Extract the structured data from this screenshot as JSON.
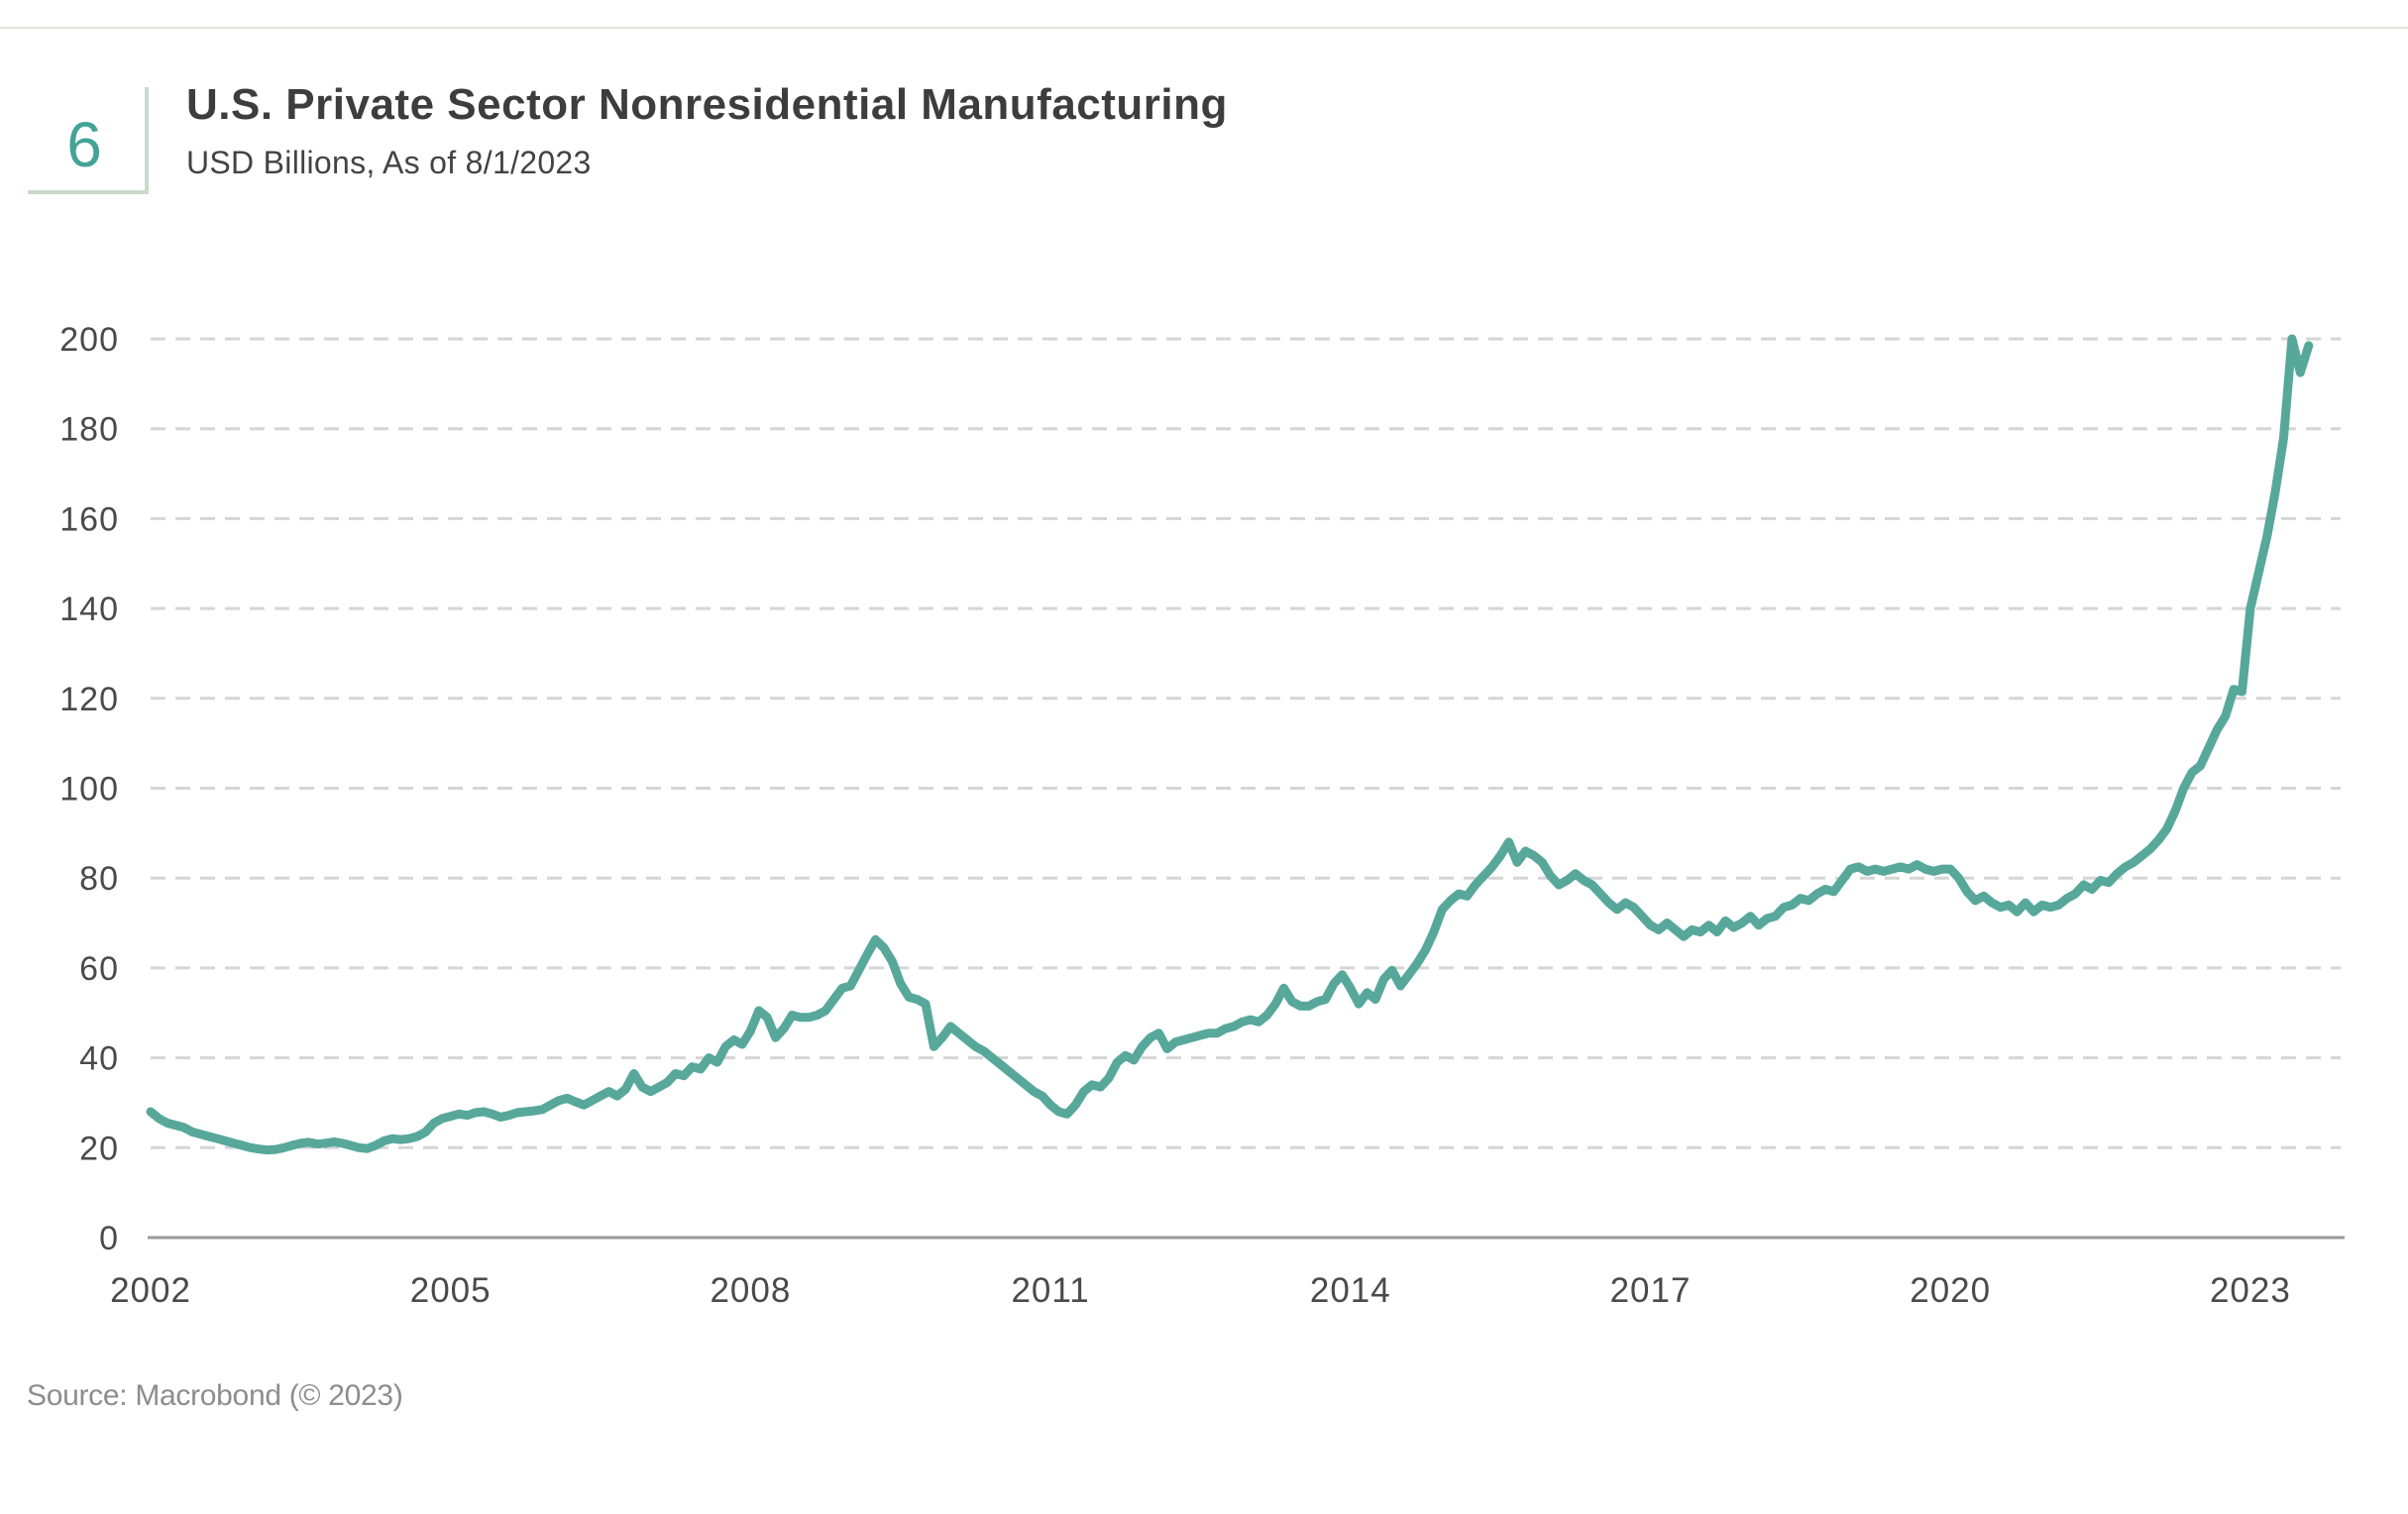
{
  "header": {
    "badge": "6",
    "title": "U.S. Private Sector Nonresidential Manufacturing",
    "subtitle": "USD Billions, As of 8/1/2023"
  },
  "footer": {
    "source": "Source: Macrobond (© 2023)"
  },
  "colors": {
    "line": "#57a89b",
    "badge_accent": "#43a396",
    "badge_border": "#ccd8cc",
    "gridline": "#d5d5d5",
    "axis": "#999999",
    "tick_label": "#4a4a4a"
  },
  "chart_data": {
    "type": "line",
    "title": "U.S. Private Sector Nonresidential Manufacturing",
    "xlabel": "",
    "ylabel": "USD Billions",
    "frequency": "monthly",
    "x_start": "2002-01",
    "x_end": "2023-08",
    "ylim": [
      0,
      200
    ],
    "grid": "dashed-horizontal",
    "legend": "none",
    "y_ticks": [
      0,
      20,
      40,
      60,
      80,
      100,
      120,
      140,
      160,
      180,
      200
    ],
    "x_ticks": [
      2002,
      2005,
      2008,
      2011,
      2014,
      2017,
      2020,
      2023
    ],
    "series": [
      {
        "name": "U.S. Private Sector Nonresidential Manufacturing",
        "start_year": 2002,
        "values": [
          28,
          26.5,
          25.5,
          25,
          24.5,
          23.5,
          23,
          22.5,
          22,
          21.5,
          21,
          20.5,
          20,
          19.7,
          19.5,
          19.6,
          20,
          20.5,
          21,
          21.2,
          20.8,
          21,
          21.3,
          21,
          20.5,
          20,
          19.8,
          20.5,
          21.5,
          22,
          21.8,
          22,
          22.5,
          23.5,
          25.5,
          26.5,
          27,
          27.5,
          27.2,
          27.8,
          28,
          27.5,
          26.8,
          27.2,
          27.8,
          28,
          28.2,
          28.5,
          29.5,
          30.5,
          31,
          30.2,
          29.5,
          30.5,
          31.5,
          32.5,
          31.5,
          33,
          36.5,
          33.5,
          32.5,
          33.5,
          34.5,
          36.5,
          36,
          38,
          37.5,
          40,
          39,
          42.5,
          44,
          43,
          46,
          50.5,
          49,
          44.5,
          46.5,
          49.5,
          49,
          49,
          49.5,
          50.5,
          53,
          55.5,
          56,
          59.5,
          63,
          66.3,
          64.5,
          61.5,
          56.5,
          53.5,
          53,
          52,
          42.5,
          44.5,
          47,
          45.5,
          44,
          42.5,
          41.5,
          40,
          38.5,
          37,
          35.5,
          34,
          32.5,
          31.5,
          29.5,
          28,
          27.5,
          29.5,
          32.5,
          34,
          33.5,
          35.5,
          39,
          40.5,
          39.5,
          42.5,
          44.5,
          45.5,
          42,
          43.5,
          44,
          44.5,
          45,
          45.5,
          45.5,
          46.5,
          47,
          48,
          48.5,
          48,
          49.5,
          52,
          55.5,
          52.5,
          51.5,
          51.5,
          52.5,
          53,
          56.5,
          58.5,
          55.5,
          52,
          54.5,
          53,
          57.5,
          59.5,
          56,
          58.5,
          61,
          64,
          68,
          73,
          75,
          76.5,
          76,
          78.5,
          80.5,
          82.5,
          85,
          88,
          83.5,
          86,
          85,
          83.5,
          80.5,
          78.5,
          79.5,
          81,
          79.5,
          78.5,
          76.5,
          74.5,
          73,
          74.5,
          73.5,
          71.5,
          69.5,
          68.5,
          70,
          68.5,
          67,
          68.5,
          68,
          69.5,
          68,
          70.5,
          69,
          70,
          71.5,
          69.5,
          71,
          71.5,
          73.5,
          74,
          75.5,
          75,
          76.5,
          77.5,
          77,
          79.5,
          82,
          82.5,
          81.5,
          82,
          81.5,
          82,
          82.5,
          82,
          83,
          82,
          81.5,
          82,
          82,
          80,
          77,
          75,
          76,
          74.5,
          73.5,
          74,
          72.5,
          74.5,
          72.5,
          74,
          73.5,
          74,
          75.5,
          76.5,
          78.5,
          77.5,
          79.5,
          79,
          81,
          82.5,
          83.5,
          85,
          86.5,
          88.5,
          91,
          95,
          100,
          103.5,
          105,
          109,
          113,
          116,
          122,
          121.5,
          140,
          148,
          156,
          166,
          178,
          200,
          192.5,
          198.5
        ]
      }
    ]
  }
}
